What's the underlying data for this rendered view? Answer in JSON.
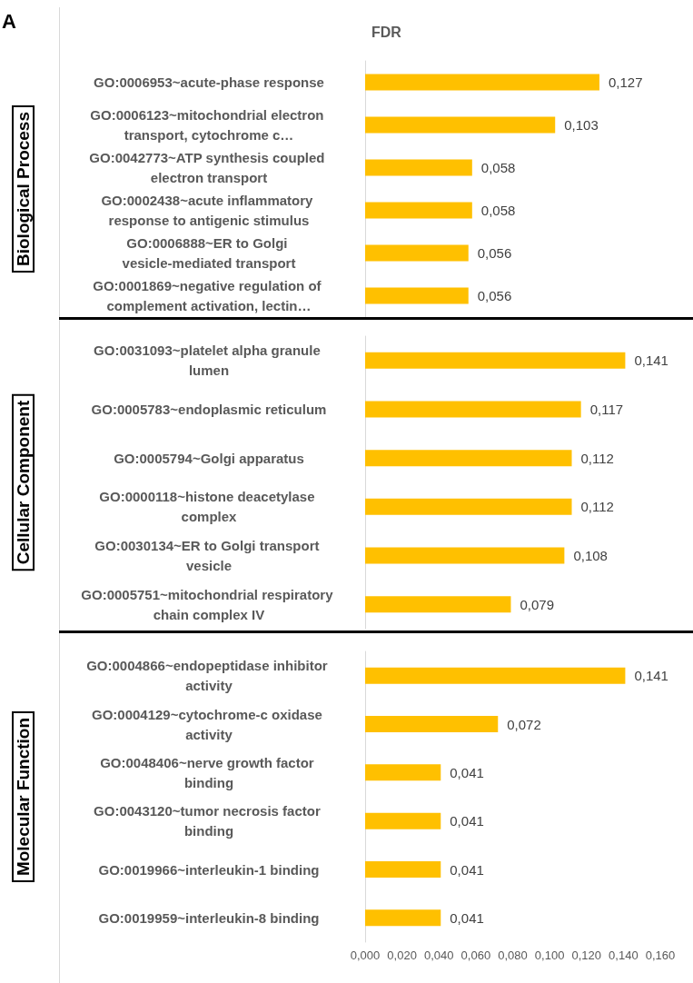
{
  "chart_data": [
    {
      "type": "bar",
      "orientation": "horizontal",
      "title": "FDR",
      "ylabel": "Biological Process",
      "annotations": [
        "A"
      ],
      "tick_labels": "y",
      "color": "#ffc000",
      "categories": [
        "GO:0006953~acute-phase response",
        "GO:0006123~mitochondrial electron transport, cytochrome c…",
        "GO:0042773~ATP synthesis coupled electron transport",
        "GO:0002438~acute inflammatory response to antigenic stimulus",
        "GO:0006888~ER to Golgi vesicle-mediated transport",
        "GO:0001869~negative regulation of complement activation, lectin…"
      ],
      "values": [
        0.127,
        0.103,
        0.058,
        0.058,
        0.056,
        0.056
      ],
      "value_labels": [
        "0,127",
        "0,103",
        "0,058",
        "0,058",
        "0,056",
        "0,056"
      ],
      "xlim": [
        0,
        0.16
      ]
    },
    {
      "type": "bar",
      "orientation": "horizontal",
      "ylabel": "Cellular Component",
      "tick_labels": "y",
      "color": "#ffc000",
      "categories": [
        "GO:0031093~platelet alpha granule lumen",
        "GO:0005783~endoplasmic reticulum",
        "GO:0005794~Golgi apparatus",
        "GO:0000118~histone deacetylase complex",
        "GO:0030134~ER to Golgi transport vesicle",
        "GO:0005751~mitochondrial respiratory chain complex IV"
      ],
      "values": [
        0.141,
        0.117,
        0.112,
        0.112,
        0.108,
        0.079
      ],
      "value_labels": [
        "0,141",
        "0,117",
        "0,112",
        "0,112",
        "0,108",
        "0,079"
      ],
      "xlim": [
        0,
        0.16
      ]
    },
    {
      "type": "bar",
      "orientation": "horizontal",
      "ylabel": "Molecular Function",
      "color": "#ffc000",
      "categories": [
        "GO:0004866~endopeptidase inhibitor activity",
        "GO:0004129~cytochrome-c oxidase activity",
        "GO:0048406~nerve growth factor binding",
        "GO:0043120~tumor necrosis factor binding",
        "GO:0019966~interleukin-1 binding",
        "GO:0019959~interleukin-8 binding"
      ],
      "values": [
        0.141,
        0.072,
        0.041,
        0.041,
        0.041,
        0.041
      ],
      "value_labels": [
        "0,141",
        "0,072",
        "0,041",
        "0,041",
        "0,041",
        "0,041"
      ],
      "xlim": [
        0,
        0.16
      ],
      "xticks": [
        {
          "value": 0,
          "label": "0,000"
        },
        {
          "value": 0.02,
          "label": "0,020"
        },
        {
          "value": 0.04,
          "label": "0,040"
        },
        {
          "value": 0.06,
          "label": "0,060"
        },
        {
          "value": 0.08,
          "label": "0,080"
        },
        {
          "value": 0.1,
          "label": "0,100"
        },
        {
          "value": 0.12,
          "label": "0,120"
        },
        {
          "value": 0.14,
          "label": "0,140"
        },
        {
          "value": 0.16,
          "label": "0,160"
        }
      ]
    }
  ]
}
